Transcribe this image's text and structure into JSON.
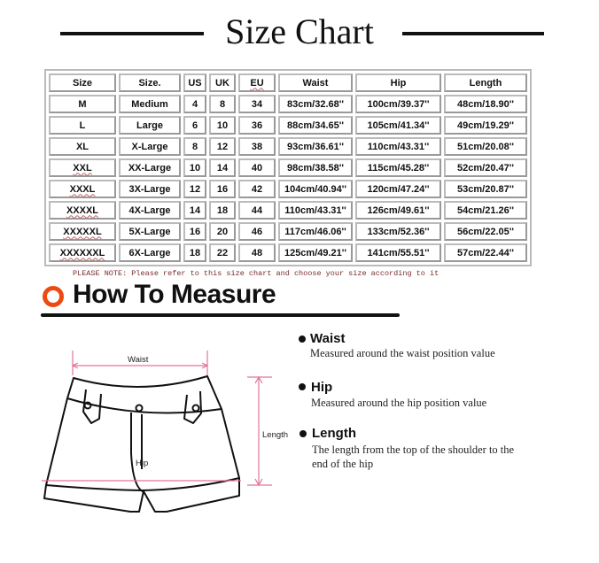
{
  "title": "Size Chart",
  "table": {
    "headers": [
      "Size",
      "Size.",
      "US",
      "UK",
      "EU",
      "Waist",
      "Hip",
      "Length"
    ],
    "rows": [
      [
        "M",
        "Medium",
        "4",
        "8",
        "34",
        "83cm/32.68''",
        "100cm/39.37''",
        "48cm/18.90''"
      ],
      [
        "L",
        "Large",
        "6",
        "10",
        "36",
        "88cm/34.65''",
        "105cm/41.34''",
        "49cm/19.29''"
      ],
      [
        "XL",
        "X-Large",
        "8",
        "12",
        "38",
        "93cm/36.61''",
        "110cm/43.31''",
        "51cm/20.08''"
      ],
      [
        "XXL",
        "XX-Large",
        "10",
        "14",
        "40",
        "98cm/38.58''",
        "115cm/45.28''",
        "52cm/20.47''"
      ],
      [
        "XXXL",
        "3X-Large",
        "12",
        "16",
        "42",
        "104cm/40.94''",
        "120cm/47.24''",
        "53cm/20.87''"
      ],
      [
        "XXXXL",
        "4X-Large",
        "14",
        "18",
        "44",
        "110cm/43.31''",
        "126cm/49.61''",
        "54cm/21.26''"
      ],
      [
        "XXXXXL",
        "5X-Large",
        "16",
        "20",
        "46",
        "117cm/46.06''",
        "133cm/52.36''",
        "56cm/22.05''"
      ],
      [
        "XXXXXXL",
        "6X-Large",
        "18",
        "22",
        "48",
        "125cm/49.21''",
        "141cm/55.51''",
        "57cm/22.44''"
      ]
    ]
  },
  "note": "PLEASE NOTE: Please refer to this size chart and choose your size according to it",
  "how_to": {
    "title": "How To Measure",
    "icon": "orange-circle-icon",
    "accent": "#ec4a12",
    "diagram_labels": {
      "waist": "Waist",
      "hip": "Hip",
      "length": "Length"
    },
    "items": [
      {
        "heading": "Waist",
        "desc": "Measured around the waist position value"
      },
      {
        "heading": "Hip",
        "desc": "Measured around the  hip position value"
      },
      {
        "heading": "Length",
        "desc": "The length from the top of the shoulder to the end of the hip"
      }
    ]
  },
  "colors": {
    "measure_line": "#e0759a",
    "text": "#111111"
  }
}
